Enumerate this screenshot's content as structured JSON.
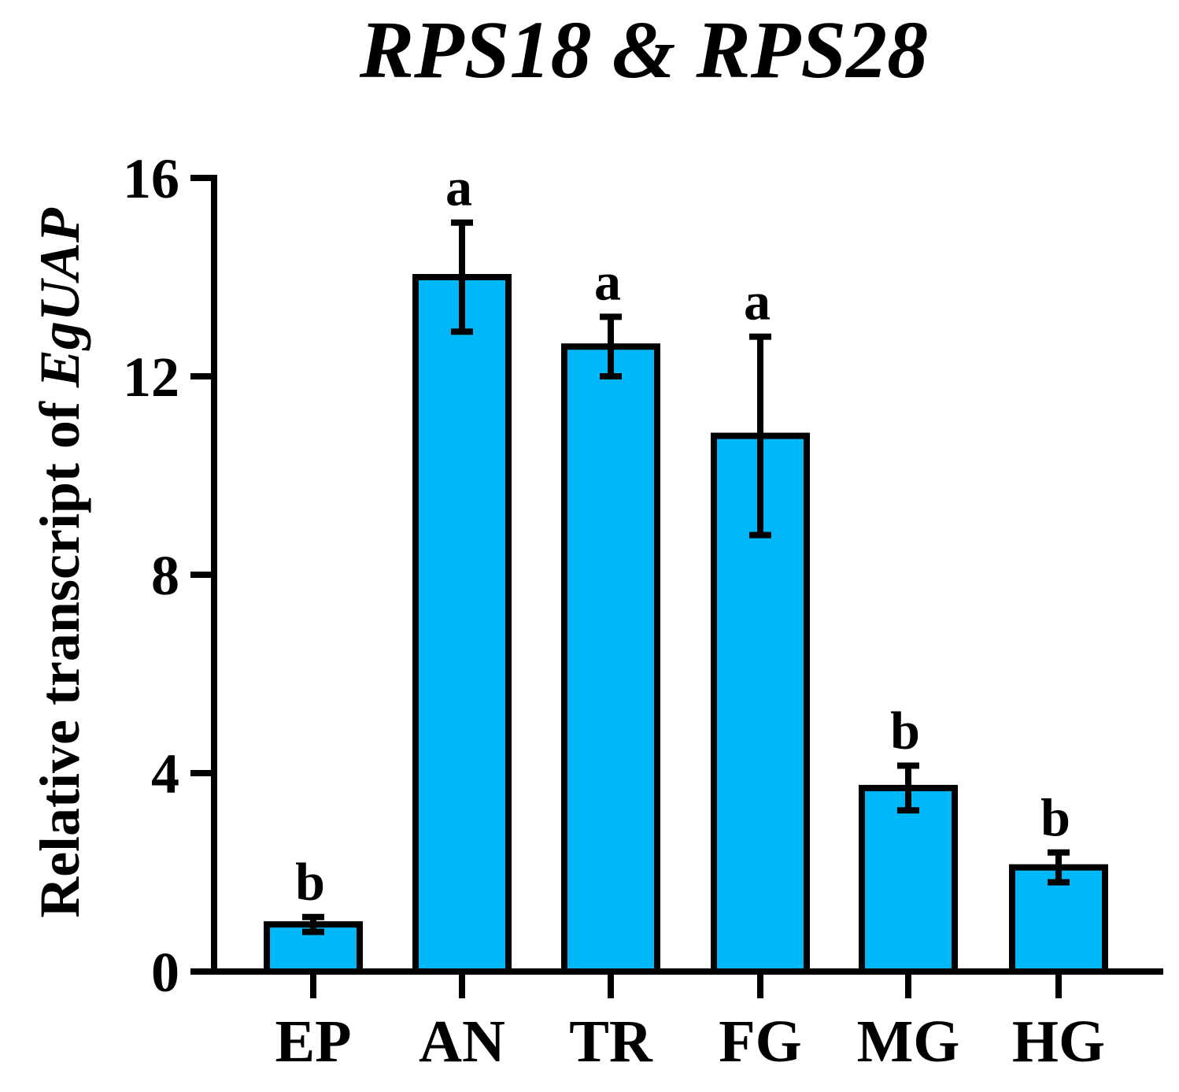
{
  "chart_data": {
    "type": "bar",
    "title": "RPS18 & RPS28",
    "ylabel_prefix": "Relative transcript of ",
    "ylabel_italic": "EgUAP",
    "ylim": [
      0,
      16
    ],
    "yticks": [
      0,
      4,
      8,
      12,
      16
    ],
    "categories": [
      "EP",
      "AN",
      "TR",
      "FG",
      "MG",
      "HG"
    ],
    "values": [
      0.95,
      14.0,
      12.6,
      10.8,
      3.7,
      2.1
    ],
    "errors": [
      0.15,
      1.1,
      0.6,
      2.0,
      0.45,
      0.3
    ],
    "significance": [
      "b",
      "a",
      "a",
      "a",
      "b",
      "b"
    ],
    "bar_color": "#00B8F8",
    "edge_color": "#000000",
    "grid": false
  }
}
